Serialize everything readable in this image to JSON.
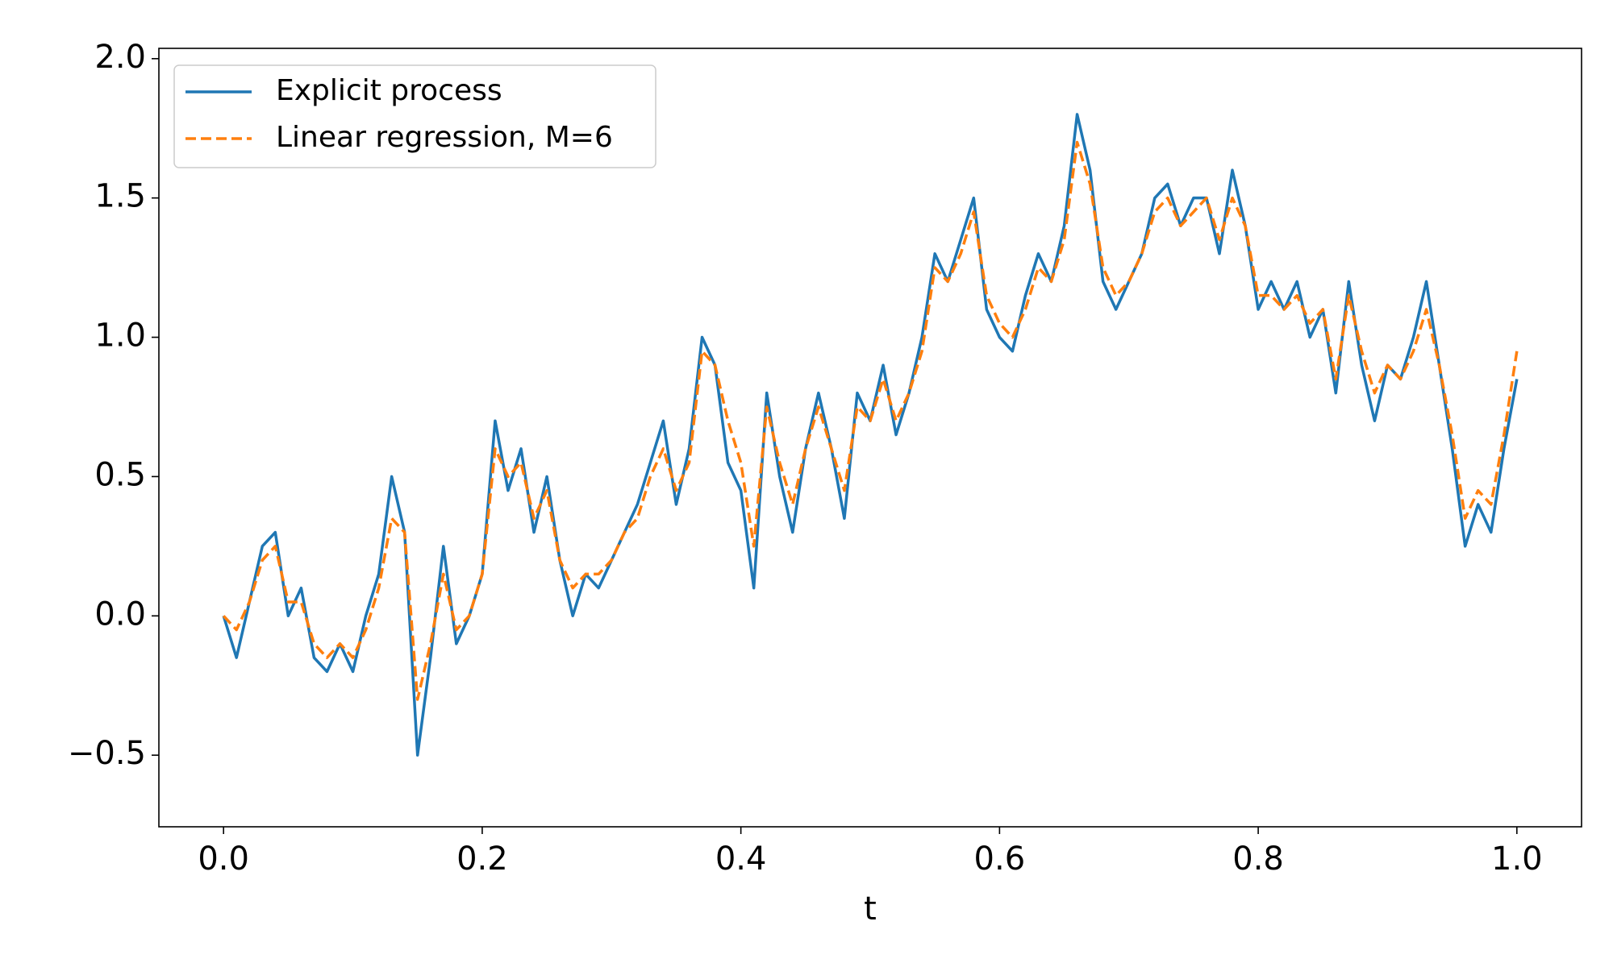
{
  "chart_data": {
    "type": "line",
    "xlabel": "t",
    "x": [
      0,
      0.01,
      0.02,
      0.03,
      0.04,
      0.05,
      0.06,
      0.07,
      0.08,
      0.09,
      0.1,
      0.11,
      0.12,
      0.13,
      0.14,
      0.15,
      0.16,
      0.17,
      0.18,
      0.19,
      0.2,
      0.21,
      0.22,
      0.23,
      0.24,
      0.25,
      0.26,
      0.27,
      0.28,
      0.29,
      0.3,
      0.31,
      0.32,
      0.33,
      0.34,
      0.35,
      0.36,
      0.37,
      0.38,
      0.39,
      0.4,
      0.41,
      0.42,
      0.43,
      0.44,
      0.45,
      0.46,
      0.47,
      0.48,
      0.49,
      0.5,
      0.51,
      0.52,
      0.53,
      0.54,
      0.55,
      0.56,
      0.57,
      0.58,
      0.59,
      0.6,
      0.61,
      0.62,
      0.63,
      0.64,
      0.65,
      0.66,
      0.67,
      0.68,
      0.69,
      0.7,
      0.71,
      0.72,
      0.73,
      0.74,
      0.75,
      0.76,
      0.77,
      0.78,
      0.79,
      0.8,
      0.81,
      0.82,
      0.83,
      0.84,
      0.85,
      0.86,
      0.87,
      0.88,
      0.89,
      0.9,
      0.91,
      0.92,
      0.93,
      0.94,
      0.95,
      0.96,
      0.97,
      0.98,
      0.99,
      1.0
    ],
    "series": [
      {
        "name": "Explicit process",
        "color": "#1f77b4",
        "dashed": false,
        "values": [
          0.0,
          -0.15,
          0.05,
          0.25,
          0.3,
          0.0,
          0.1,
          -0.15,
          -0.2,
          -0.1,
          -0.2,
          0.0,
          0.15,
          0.5,
          0.3,
          -0.5,
          -0.15,
          0.25,
          -0.1,
          0.0,
          0.15,
          0.7,
          0.45,
          0.6,
          0.3,
          0.5,
          0.2,
          0.0,
          0.15,
          0.1,
          0.2,
          0.3,
          0.4,
          0.55,
          0.7,
          0.4,
          0.6,
          1.0,
          0.9,
          0.55,
          0.45,
          0.1,
          0.8,
          0.5,
          0.3,
          0.6,
          0.8,
          0.6,
          0.35,
          0.8,
          0.7,
          0.9,
          0.65,
          0.8,
          1.0,
          1.3,
          1.2,
          1.35,
          1.5,
          1.1,
          1.0,
          0.95,
          1.15,
          1.3,
          1.2,
          1.4,
          1.8,
          1.6,
          1.2,
          1.1,
          1.2,
          1.3,
          1.5,
          1.55,
          1.4,
          1.5,
          1.5,
          1.3,
          1.6,
          1.4,
          1.1,
          1.2,
          1.1,
          1.2,
          1.0,
          1.1,
          0.8,
          1.2,
          0.9,
          0.7,
          0.9,
          0.85,
          1.0,
          1.2,
          0.9,
          0.6,
          0.25,
          0.4,
          0.3,
          0.6,
          0.85
        ]
      },
      {
        "name": "Linear regression, M=6",
        "color": "#ff7f0e",
        "dashed": true,
        "values": [
          0.0,
          -0.05,
          0.05,
          0.2,
          0.25,
          0.05,
          0.05,
          -0.1,
          -0.15,
          -0.1,
          -0.15,
          -0.05,
          0.1,
          0.35,
          0.3,
          -0.3,
          -0.1,
          0.15,
          -0.05,
          0.0,
          0.15,
          0.6,
          0.5,
          0.55,
          0.35,
          0.45,
          0.2,
          0.1,
          0.15,
          0.15,
          0.2,
          0.3,
          0.35,
          0.5,
          0.6,
          0.45,
          0.55,
          0.95,
          0.9,
          0.7,
          0.55,
          0.25,
          0.75,
          0.55,
          0.4,
          0.6,
          0.75,
          0.6,
          0.45,
          0.75,
          0.7,
          0.85,
          0.7,
          0.8,
          0.95,
          1.25,
          1.2,
          1.3,
          1.45,
          1.15,
          1.05,
          1.0,
          1.1,
          1.25,
          1.2,
          1.35,
          1.7,
          1.55,
          1.25,
          1.15,
          1.2,
          1.3,
          1.45,
          1.5,
          1.4,
          1.45,
          1.5,
          1.35,
          1.5,
          1.4,
          1.15,
          1.15,
          1.1,
          1.15,
          1.05,
          1.1,
          0.85,
          1.15,
          0.95,
          0.8,
          0.9,
          0.85,
          0.95,
          1.1,
          0.9,
          0.65,
          0.35,
          0.45,
          0.4,
          0.65,
          0.95
        ]
      }
    ],
    "xlim": [
      -0.05,
      1.05
    ],
    "ylim": [
      -0.757,
      2.037
    ],
    "xticks": [
      {
        "value": 0,
        "label": "0.0"
      },
      {
        "value": 0.2,
        "label": "0.2"
      },
      {
        "value": 0.4,
        "label": "0.4"
      },
      {
        "value": 0.6,
        "label": "0.6"
      },
      {
        "value": 0.8,
        "label": "0.8"
      },
      {
        "value": 1.0,
        "label": "1.0"
      }
    ],
    "yticks": [
      {
        "value": -0.5,
        "label": "−0.5"
      },
      {
        "value": 0,
        "label": "0.0"
      },
      0.5,
      {
        "value": 1.0,
        "label": "1.0"
      },
      1.5,
      {
        "value": 2.0,
        "label": "2.0"
      }
    ],
    "grid": false,
    "legend": "upper left"
  }
}
